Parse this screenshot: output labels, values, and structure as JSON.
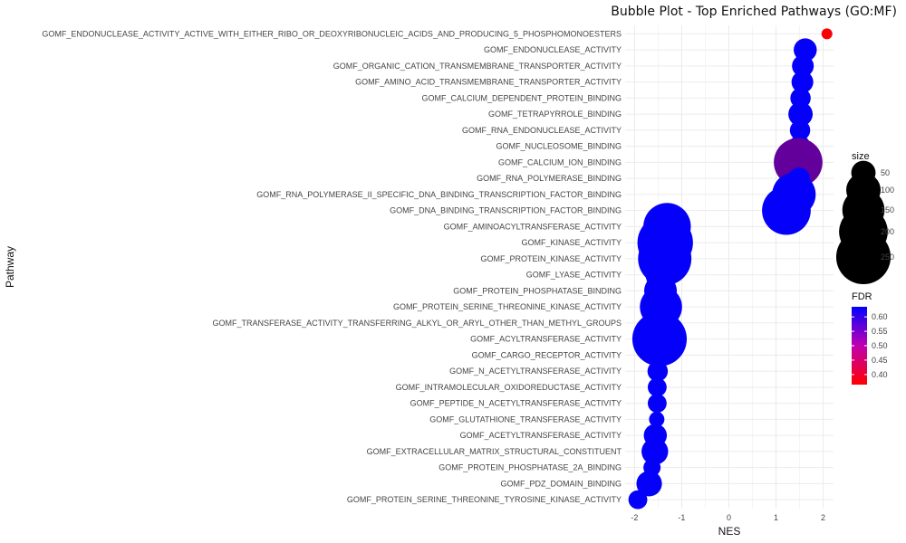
{
  "chart_data": {
    "type": "scatter",
    "title": "Bubble Plot - Top Enriched Pathways (GO:MF)",
    "xlabel": "NES",
    "ylabel": "Pathway",
    "xlim": [
      -2.2,
      2.22
    ],
    "xticks": [
      -2,
      -1,
      0,
      1,
      2
    ],
    "grid": true,
    "categories": [
      "GOMF_ENDONUCLEASE_ACTIVITY_ACTIVE_WITH_EITHER_RIBO_OR_DEOXYRIBONUCLEIC_ACIDS_AND_PRODUCING_5_PHOSPHOMONOESTERS",
      "GOMF_ENDONUCLEASE_ACTIVITY",
      "GOMF_ORGANIC_CATION_TRANSMEMBRANE_TRANSPORTER_ACTIVITY",
      "GOMF_AMINO_ACID_TRANSMEMBRANE_TRANSPORTER_ACTIVITY",
      "GOMF_CALCIUM_DEPENDENT_PROTEIN_BINDING",
      "GOMF_TETRAPYRROLE_BINDING",
      "GOMF_RNA_ENDONUCLEASE_ACTIVITY",
      "GOMF_NUCLEOSOME_BINDING",
      "GOMF_CALCIUM_ION_BINDING",
      "GOMF_RNA_POLYMERASE_BINDING",
      "GOMF_RNA_POLYMERASE_II_SPECIFIC_DNA_BINDING_TRANSCRIPTION_FACTOR_BINDING",
      "GOMF_DNA_BINDING_TRANSCRIPTION_FACTOR_BINDING",
      "GOMF_AMINOACYLTRANSFERASE_ACTIVITY",
      "GOMF_KINASE_ACTIVITY",
      "GOMF_PROTEIN_KINASE_ACTIVITY",
      "GOMF_LYASE_ACTIVITY",
      "GOMF_PROTEIN_PHOSPHATASE_BINDING",
      "GOMF_PROTEIN_SERINE_THREONINE_KINASE_ACTIVITY",
      "GOMF_TRANSFERASE_ACTIVITY_TRANSFERRING_ALKYL_OR_ARYL_OTHER_THAN_METHYL_GROUPS",
      "GOMF_ACYLTRANSFERASE_ACTIVITY",
      "GOMF_CARGO_RECEPTOR_ACTIVITY",
      "GOMF_N_ACETYLTRANSFERASE_ACTIVITY",
      "GOMF_INTRAMOLECULAR_OXIDOREDUCTASE_ACTIVITY",
      "GOMF_PEPTIDE_N_ACETYLTRANSFERASE_ACTIVITY",
      "GOMF_GLUTATHIONE_TRANSFERASE_ACTIVITY",
      "GOMF_ACETYLTRANSFERASE_ACTIVITY",
      "GOMF_EXTRACELLULAR_MATRIX_STRUCTURAL_CONSTITUENT",
      "GOMF_PROTEIN_PHOSPHATASE_2A_BINDING",
      "GOMF_PDZ_DOMAIN_BINDING",
      "GOMF_PROTEIN_SERINE_THREONINE_TYROSINE_KINASE_ACTIVITY"
    ],
    "nes": [
      2.08,
      1.62,
      1.57,
      1.56,
      1.52,
      1.52,
      1.51,
      1.5,
      1.47,
      1.49,
      1.38,
      1.22,
      -1.31,
      -1.35,
      -1.36,
      -1.44,
      -1.45,
      -1.44,
      -1.46,
      -1.47,
      -1.47,
      -1.51,
      -1.52,
      -1.52,
      -1.53,
      -1.56,
      -1.57,
      -1.63,
      -1.69,
      -1.93
    ],
    "size": [
      10,
      45,
      40,
      40,
      35,
      50,
      35,
      40,
      200,
      40,
      160,
      200,
      190,
      260,
      240,
      80,
      90,
      150,
      40,
      250,
      30,
      35,
      30,
      30,
      20,
      45,
      60,
      25,
      55,
      30
    ],
    "fdr": [
      0.37,
      0.63,
      0.63,
      0.63,
      0.63,
      0.63,
      0.63,
      0.63,
      0.53,
      0.63,
      0.63,
      0.63,
      0.63,
      0.63,
      0.63,
      0.63,
      0.63,
      0.63,
      0.63,
      0.63,
      0.63,
      0.63,
      0.63,
      0.63,
      0.63,
      0.63,
      0.63,
      0.63,
      0.63,
      0.63
    ],
    "legend_size": {
      "title": "size",
      "values": [
        50,
        100,
        150,
        200,
        250
      ]
    },
    "legend_color": {
      "title": "FDR",
      "ticks": [
        0.6,
        0.55,
        0.5,
        0.45,
        0.4
      ],
      "tick_labels": [
        "0.60",
        "0.55",
        "0.50",
        "0.45",
        "0.40"
      ],
      "range": [
        0.365,
        0.635
      ],
      "low_color": "#FF0000",
      "high_color": "#0000FF"
    },
    "legend_placement": "right"
  }
}
